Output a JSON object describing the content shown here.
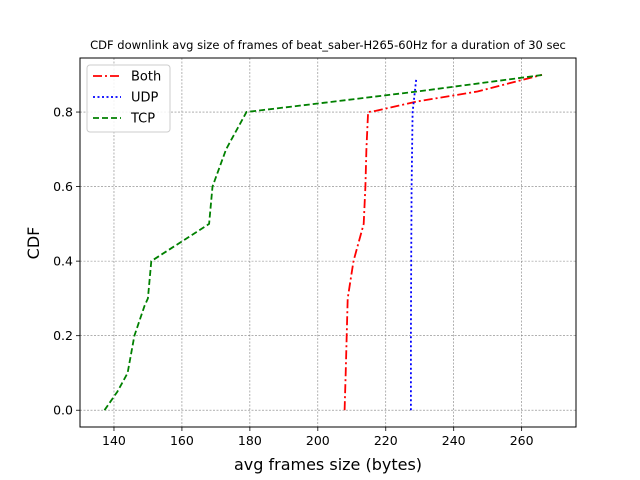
{
  "chart_data": {
    "type": "line",
    "title": "CDF downlink avg size of frames of beat_saber-H265-60Hz for a duration of 30 sec",
    "xlabel": "avg frames size (bytes)",
    "ylabel": "CDF",
    "xlim": [
      130,
      276
    ],
    "ylim": [
      -0.045,
      0.945
    ],
    "xticks": [
      "140",
      "160",
      "180",
      "200",
      "220",
      "240",
      "260"
    ],
    "yticks": [
      "0.0",
      "0.2",
      "0.4",
      "0.6",
      "0.8"
    ],
    "xtick_values": [
      140,
      160,
      180,
      200,
      220,
      240,
      260
    ],
    "ytick_values": [
      0.0,
      0.2,
      0.4,
      0.6,
      0.8
    ],
    "grid": true,
    "legend_position": "top-left",
    "series": [
      {
        "name": "Both",
        "color": "#ff0000",
        "dash": "dashdot",
        "points": [
          [
            207.9,
            0.0
          ],
          [
            208.2,
            0.1
          ],
          [
            208.5,
            0.2
          ],
          [
            208.8,
            0.3
          ],
          [
            210.5,
            0.4
          ],
          [
            213.5,
            0.5
          ],
          [
            214.0,
            0.6
          ],
          [
            214.3,
            0.7
          ],
          [
            214.8,
            0.8
          ],
          [
            217.0,
            0.803
          ],
          [
            229.0,
            0.828
          ],
          [
            247.0,
            0.855
          ],
          [
            266.0,
            0.9
          ]
        ]
      },
      {
        "name": "UDP",
        "color": "#0000ff",
        "dash": "dotted",
        "points": [
          [
            227.4,
            0.0
          ],
          [
            227.4,
            0.2
          ],
          [
            227.5,
            0.4
          ],
          [
            227.6,
            0.6
          ],
          [
            227.9,
            0.8
          ],
          [
            229.0,
            0.89
          ]
        ]
      },
      {
        "name": "TCP",
        "color": "#008000",
        "dash": "dashed",
        "points": [
          [
            137.2,
            0.0
          ],
          [
            141.0,
            0.05
          ],
          [
            144.0,
            0.1
          ],
          [
            146.0,
            0.2
          ],
          [
            149.0,
            0.28
          ],
          [
            150.0,
            0.3
          ],
          [
            151.0,
            0.4
          ],
          [
            168.0,
            0.5
          ],
          [
            169.0,
            0.6
          ],
          [
            173.0,
            0.7
          ],
          [
            179.0,
            0.8
          ],
          [
            202.0,
            0.825
          ],
          [
            230.0,
            0.856
          ],
          [
            266.5,
            0.9
          ]
        ]
      }
    ]
  }
}
